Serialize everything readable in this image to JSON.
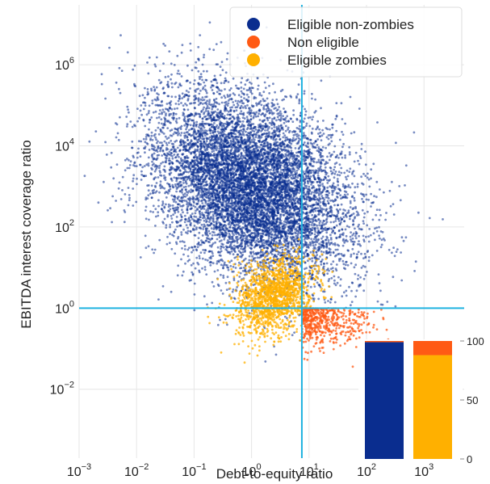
{
  "chart_data": [
    {
      "type": "scatter",
      "xlabel": "Debt-to-equity ratio",
      "ylabel": "EBITDA interest coverage ratio",
      "x_scale": "log",
      "y_scale": "log",
      "xlim": [
        0.001,
        5000
      ],
      "ylim": [
        0.0002,
        30000000
      ],
      "x_ticks": [
        {
          "value": 0.001,
          "base": "10",
          "exp": "−3"
        },
        {
          "value": 0.01,
          "base": "10",
          "exp": "−2"
        },
        {
          "value": 0.1,
          "base": "10",
          "exp": "−1"
        },
        {
          "value": 1,
          "base": "10",
          "exp": "0"
        },
        {
          "value": 10,
          "base": "10",
          "exp": "1"
        },
        {
          "value": 100,
          "base": "10",
          "exp": "2"
        },
        {
          "value": 1000,
          "base": "10",
          "exp": "3"
        }
      ],
      "y_ticks": [
        {
          "value": 0.01,
          "base": "10",
          "exp": "−2"
        },
        {
          "value": 1,
          "base": "10",
          "exp": "0"
        },
        {
          "value": 100,
          "base": "10",
          "exp": "2"
        },
        {
          "value": 10000,
          "base": "10",
          "exp": "4"
        },
        {
          "value": 1000000,
          "base": "10",
          "exp": "6"
        }
      ],
      "grid": true,
      "threshold_lines": {
        "x": 7.5,
        "y": 1,
        "color": "#1fb2e0"
      },
      "legend": {
        "placement": "top-right",
        "entries": [
          {
            "label": "Eligible non-zombies",
            "color": "#0a2d8f"
          },
          {
            "label": "Non eligible",
            "color": "#ff5a14"
          },
          {
            "label": "Eligible zombies",
            "color": "#ffb000"
          }
        ]
      },
      "series": [
        {
          "name": "Eligible non-zombies",
          "color": "#0a2d8f",
          "center_log10": [
            0.0,
            3.0
          ],
          "count": 9000
        },
        {
          "name": "Eligible zombies",
          "color": "#ffb000",
          "center_log10": [
            0.4,
            0.3
          ],
          "count": 1500
        },
        {
          "name": "Non eligible",
          "color": "#ff5a14",
          "region": "x > 7.5 and y < 1",
          "count": 500
        }
      ]
    },
    {
      "type": "bar",
      "stacked": true,
      "ylim": [
        0,
        100
      ],
      "y_ticks": [
        "0",
        "50",
        "100"
      ],
      "bars": [
        {
          "segments": [
            {
              "color": "#0a2d8f",
              "value": 99
            },
            {
              "color": "#ff5a14",
              "value": 1
            }
          ]
        },
        {
          "segments": [
            {
              "color": "#ffb000",
              "value": 88
            },
            {
              "color": "#ff5a14",
              "value": 12
            }
          ]
        }
      ]
    }
  ]
}
